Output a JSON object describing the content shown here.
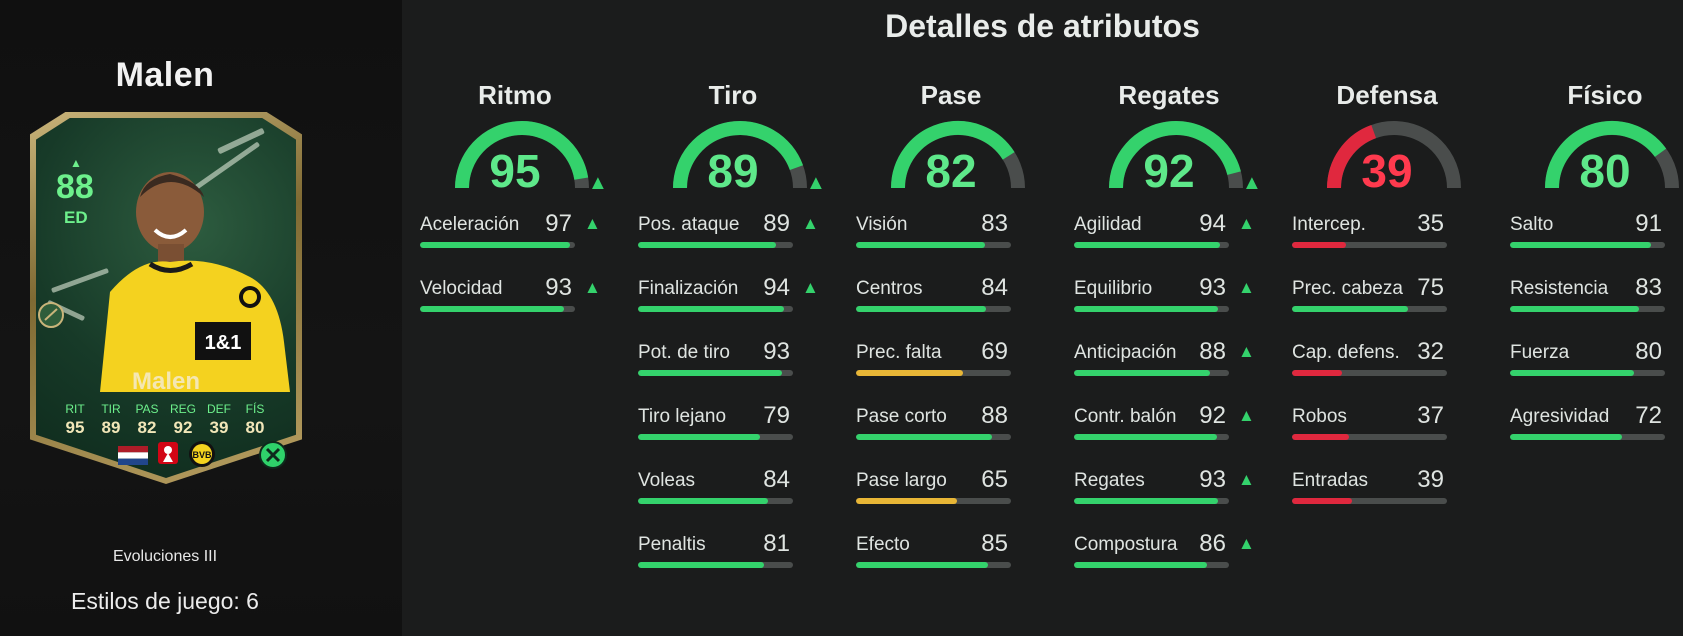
{
  "player": {
    "name": "Malen",
    "card": {
      "rating": "88",
      "position": "ED",
      "name": "Malen",
      "stats": [
        {
          "label": "RIT",
          "value": "95"
        },
        {
          "label": "TIR",
          "value": "89"
        },
        {
          "label": "PAS",
          "value": "82"
        },
        {
          "label": "REG",
          "value": "92"
        },
        {
          "label": "DEF",
          "value": "39"
        },
        {
          "label": "FÍS",
          "value": "80"
        }
      ],
      "nation_icon": "netherlands-flag-icon",
      "league_icon": "bundesliga-icon",
      "club_icon": "borussia-dortmund-crest-icon",
      "evolution_icon": "evolution-badge-icon"
    },
    "program": "Evoluciones III",
    "playstyles": "Estilos de juego: 6"
  },
  "main_title": "Detalles de atributos",
  "colors": {
    "green": "#34d26c",
    "green_text": "#5ee88a",
    "yellow": "#e8b636",
    "red": "#e0283e",
    "red_text": "#ff3a4e",
    "track": "#4a4d4c"
  },
  "categories": [
    {
      "name": "Ritmo",
      "value": "95",
      "upgraded": true,
      "tier": "green",
      "stats": [
        {
          "name": "Aceleración",
          "value": "97",
          "upgraded": true
        },
        {
          "name": "Velocidad",
          "value": "93",
          "upgraded": true
        }
      ]
    },
    {
      "name": "Tiro",
      "value": "89",
      "upgraded": true,
      "tier": "green",
      "stats": [
        {
          "name": "Pos. ataque",
          "value": "89",
          "upgraded": true
        },
        {
          "name": "Finalización",
          "value": "94",
          "upgraded": true
        },
        {
          "name": "Pot. de tiro",
          "value": "93",
          "upgraded": false
        },
        {
          "name": "Tiro lejano",
          "value": "79",
          "upgraded": false
        },
        {
          "name": "Voleas",
          "value": "84",
          "upgraded": false
        },
        {
          "name": "Penaltis",
          "value": "81",
          "upgraded": false
        }
      ]
    },
    {
      "name": "Pase",
      "value": "82",
      "upgraded": false,
      "tier": "green",
      "stats": [
        {
          "name": "Visión",
          "value": "83",
          "upgraded": false
        },
        {
          "name": "Centros",
          "value": "84",
          "upgraded": false
        },
        {
          "name": "Prec. falta",
          "value": "69",
          "upgraded": false
        },
        {
          "name": "Pase corto",
          "value": "88",
          "upgraded": false
        },
        {
          "name": "Pase largo",
          "value": "65",
          "upgraded": false
        },
        {
          "name": "Efecto",
          "value": "85",
          "upgraded": false
        }
      ]
    },
    {
      "name": "Regates",
      "value": "92",
      "upgraded": true,
      "tier": "green",
      "stats": [
        {
          "name": "Agilidad",
          "value": "94",
          "upgraded": true
        },
        {
          "name": "Equilibrio",
          "value": "93",
          "upgraded": true
        },
        {
          "name": "Anticipación",
          "value": "88",
          "upgraded": true
        },
        {
          "name": "Contr. balón",
          "value": "92",
          "upgraded": true
        },
        {
          "name": "Regates",
          "value": "93",
          "upgraded": true
        },
        {
          "name": "Compostura",
          "value": "86",
          "upgraded": true
        }
      ]
    },
    {
      "name": "Defensa",
      "value": "39",
      "upgraded": false,
      "tier": "red",
      "stats": [
        {
          "name": "Intercep.",
          "value": "35",
          "upgraded": false
        },
        {
          "name": "Prec. cabeza",
          "value": "75",
          "upgraded": false
        },
        {
          "name": "Cap. defens.",
          "value": "32",
          "upgraded": false
        },
        {
          "name": "Robos",
          "value": "37",
          "upgraded": false
        },
        {
          "name": "Entradas",
          "value": "39",
          "upgraded": false
        }
      ]
    },
    {
      "name": "Físico",
      "value": "80",
      "upgraded": false,
      "tier": "green",
      "stats": [
        {
          "name": "Salto",
          "value": "91",
          "upgraded": false
        },
        {
          "name": "Resistencia",
          "value": "83",
          "upgraded": false
        },
        {
          "name": "Fuerza",
          "value": "80",
          "upgraded": false
        },
        {
          "name": "Agresividad",
          "value": "72",
          "upgraded": false
        }
      ]
    }
  ]
}
